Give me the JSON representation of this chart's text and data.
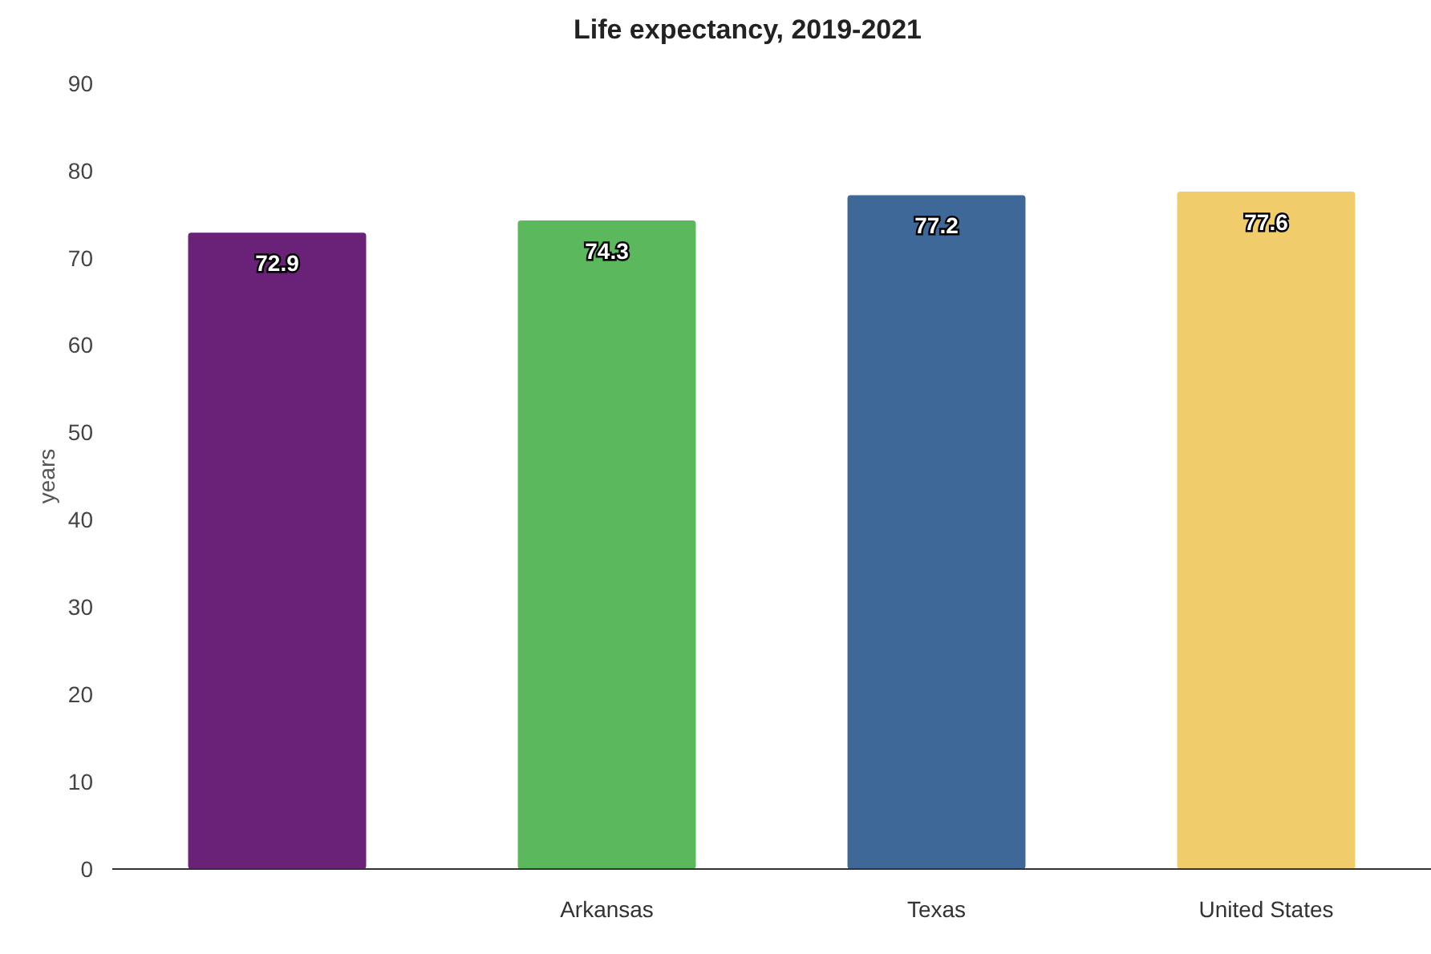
{
  "chart_data": {
    "type": "bar",
    "title": "Life expectancy, 2019-2021",
    "ylabel": "years",
    "categories": [
      null,
      "Arkansas",
      "Texas",
      "United States"
    ],
    "values": [
      72.9,
      74.3,
      77.2,
      77.6
    ],
    "colors": [
      "#6a2178",
      "#5cb85c",
      "#3e6897",
      "#f0cd6a"
    ],
    "ylim": [
      0,
      90
    ],
    "yticks": [
      0,
      10,
      20,
      30,
      40,
      50,
      60,
      70,
      80,
      90
    ],
    "data_labels": true
  }
}
